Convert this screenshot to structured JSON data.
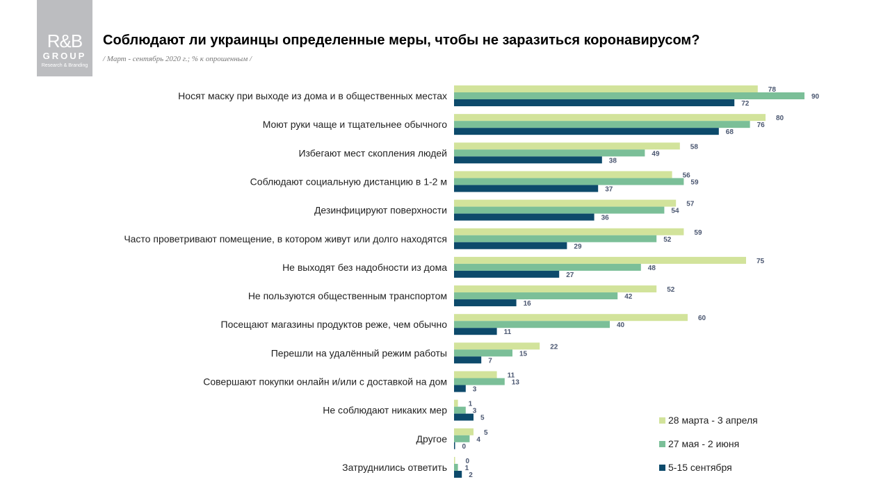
{
  "logo": {
    "line1": "R&B",
    "line2": "GROUP",
    "line3": "Research & Branding"
  },
  "title": "Соблюдают ли украинцы определенные меры, чтобы не заразиться коронавирусом?",
  "subtitle": "/ Март - сентябрь 2020 г.; % к опрошенным  /",
  "chart_data": {
    "type": "bar",
    "orientation": "horizontal",
    "title": "Соблюдают ли украинцы определенные меры, чтобы не заразиться коронавирусом?",
    "categories": [
      "Носят маску при выходе из дома и в общественных местах",
      "Моют руки чаще и тщательнее обычного",
      "Избегают мест скопления людей",
      "Соблюдают социальную дистанцию в 1-2 м",
      "Дезинфицируют поверхности",
      "Часто проветривают помещение, в котором живут или долго находятся",
      "Не выходят без надобности из дома",
      "Не пользуются общественным транспортом",
      "Посещают магазины продуктов реже, чем обычно",
      "Перешли  на удалённый режим работы",
      "Совершают покупки онлайн и/или с доставкой на дом",
      "Не соблюдают никаких мер",
      "Другое",
      "Затруднились ответить"
    ],
    "series": [
      {
        "name": "28 марта - 3 апреля",
        "color": "#d2e39b",
        "values": [
          78,
          80,
          58,
          56,
          57,
          59,
          75,
          52,
          60,
          22,
          11,
          1,
          5,
          0
        ]
      },
      {
        "name": "27 мая - 2 июня",
        "color": "#7bbf98",
        "values": [
          90,
          76,
          49,
          59,
          54,
          52,
          48,
          42,
          40,
          15,
          13,
          3,
          4,
          1
        ]
      },
      {
        "name": "5-15 сентября",
        "color": "#0d4a6b",
        "values": [
          72,
          68,
          38,
          37,
          36,
          29,
          27,
          16,
          11,
          7,
          3,
          5,
          0,
          2
        ]
      }
    ],
    "legend": "bottom-right",
    "grid": false,
    "xlim": [
      0,
      100
    ]
  }
}
